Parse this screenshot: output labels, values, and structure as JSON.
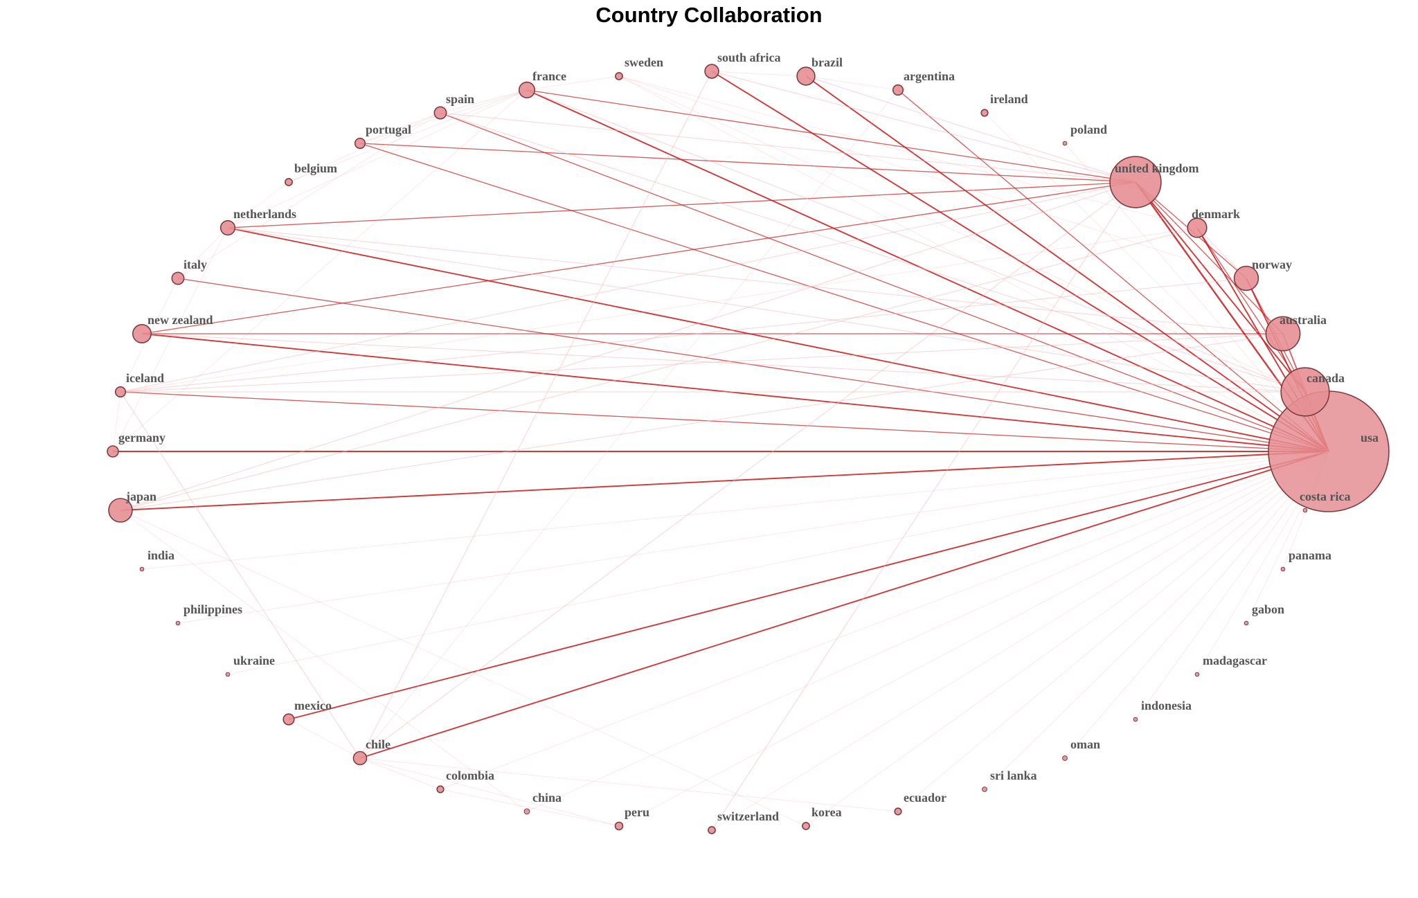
{
  "title": "Country Collaboration",
  "colors": {
    "node_fill": "#e58f94",
    "node_stroke": "#7a3d40",
    "edge_strong": "#cc2222",
    "edge_faint": "#f2b8bb",
    "label": "#555555"
  },
  "nodes": [
    {
      "id": "usa",
      "label": "usa",
      "weight": 100
    },
    {
      "id": "united kingdom",
      "label": "united kingdom",
      "weight": 18
    },
    {
      "id": "canada",
      "label": "canada",
      "weight": 16
    },
    {
      "id": "australia",
      "label": "australia",
      "weight": 8
    },
    {
      "id": "norway",
      "label": "norway",
      "weight": 4
    },
    {
      "id": "denmark",
      "label": "denmark",
      "weight": 2.5
    },
    {
      "id": "japan",
      "label": "japan",
      "weight": 3.8
    },
    {
      "id": "new zealand",
      "label": "new zealand",
      "weight": 2.3
    },
    {
      "id": "brazil",
      "label": "brazil",
      "weight": 2.2
    },
    {
      "id": "france",
      "label": "france",
      "weight": 1.7
    },
    {
      "id": "netherlands",
      "label": "netherlands",
      "weight": 1.4
    },
    {
      "id": "south africa",
      "label": "south africa",
      "weight": 1.3
    },
    {
      "id": "chile",
      "label": "chile",
      "weight": 1.2
    },
    {
      "id": "spain",
      "label": "spain",
      "weight": 1.0
    },
    {
      "id": "italy",
      "label": "italy",
      "weight": 1.0
    },
    {
      "id": "germany",
      "label": "germany",
      "weight": 0.85
    },
    {
      "id": "mexico",
      "label": "mexico",
      "weight": 0.8
    },
    {
      "id": "iceland",
      "label": "iceland",
      "weight": 0.7
    },
    {
      "id": "portugal",
      "label": "portugal",
      "weight": 0.7
    },
    {
      "id": "argentina",
      "label": "argentina",
      "weight": 0.7
    },
    {
      "id": "sweden",
      "label": "sweden",
      "weight": 0.35
    },
    {
      "id": "belgium",
      "label": "belgium",
      "weight": 0.35
    },
    {
      "id": "ireland",
      "label": "ireland",
      "weight": 0.3
    },
    {
      "id": "colombia",
      "label": "colombia",
      "weight": 0.3
    },
    {
      "id": "peru",
      "label": "peru",
      "weight": 0.4
    },
    {
      "id": "switzerland",
      "label": "switzerland",
      "weight": 0.35
    },
    {
      "id": "korea",
      "label": "korea",
      "weight": 0.35
    },
    {
      "id": "ecuador",
      "label": "ecuador",
      "weight": 0.3
    },
    {
      "id": "china",
      "label": "china",
      "weight": 0.2
    },
    {
      "id": "sri lanka",
      "label": "sri lanka",
      "weight": 0.15
    },
    {
      "id": "oman",
      "label": "oman",
      "weight": 0.15
    },
    {
      "id": "indonesia",
      "label": "indonesia",
      "weight": 0.1
    },
    {
      "id": "madagascar",
      "label": "madagascar",
      "weight": 0.1
    },
    {
      "id": "gabon",
      "label": "gabon",
      "weight": 0.1
    },
    {
      "id": "panama",
      "label": "panama",
      "weight": 0.1
    },
    {
      "id": "costa rica",
      "label": "costa rica",
      "weight": 0.1
    },
    {
      "id": "india",
      "label": "india",
      "weight": 0.1
    },
    {
      "id": "philippines",
      "label": "philippines",
      "weight": 0.1
    },
    {
      "id": "ukraine",
      "label": "ukraine",
      "weight": 0.1
    },
    {
      "id": "poland",
      "label": "poland",
      "weight": 0.1
    }
  ],
  "edges": [
    [
      "usa",
      "united kingdom",
      5
    ],
    [
      "usa",
      "canada",
      5
    ],
    [
      "usa",
      "australia",
      4
    ],
    [
      "usa",
      "norway",
      4
    ],
    [
      "usa",
      "denmark",
      4
    ],
    [
      "usa",
      "japan",
      4
    ],
    [
      "usa",
      "new zealand",
      4
    ],
    [
      "usa",
      "germany",
      4
    ],
    [
      "usa",
      "netherlands",
      4
    ],
    [
      "usa",
      "france",
      4
    ],
    [
      "usa",
      "brazil",
      4
    ],
    [
      "usa",
      "south africa",
      4
    ],
    [
      "usa",
      "chile",
      4
    ],
    [
      "usa",
      "mexico",
      4
    ],
    [
      "usa",
      "argentina",
      3
    ],
    [
      "usa",
      "italy",
      3
    ],
    [
      "usa",
      "iceland",
      3
    ],
    [
      "usa",
      "portugal",
      3
    ],
    [
      "usa",
      "spain",
      3
    ],
    [
      "united kingdom",
      "canada",
      4
    ],
    [
      "united kingdom",
      "australia",
      3
    ],
    [
      "united kingdom",
      "norway",
      3
    ],
    [
      "united kingdom",
      "france",
      3
    ],
    [
      "united kingdom",
      "netherlands",
      3
    ],
    [
      "united kingdom",
      "portugal",
      3
    ],
    [
      "united kingdom",
      "new zealand",
      3
    ],
    [
      "united kingdom",
      "iceland",
      2
    ],
    [
      "united kingdom",
      "spain",
      2
    ],
    [
      "united kingdom",
      "brazil",
      2
    ],
    [
      "united kingdom",
      "south africa",
      2
    ],
    [
      "united kingdom",
      "japan",
      2
    ],
    [
      "united kingdom",
      "chile",
      2
    ],
    [
      "canada",
      "denmark",
      3
    ],
    [
      "canada",
      "norway",
      3
    ],
    [
      "canada",
      "australia",
      2
    ],
    [
      "canada",
      "new zealand",
      2
    ],
    [
      "canada",
      "netherlands",
      2
    ],
    [
      "canada",
      "iceland",
      2
    ],
    [
      "canada",
      "france",
      2
    ],
    [
      "canada",
      "spain",
      2
    ],
    [
      "australia",
      "new zealand",
      3
    ],
    [
      "australia",
      "netherlands",
      2
    ],
    [
      "australia",
      "japan",
      2
    ],
    [
      "australia",
      "iceland",
      2
    ],
    [
      "norway",
      "iceland",
      2
    ],
    [
      "norway",
      "denmark",
      2
    ],
    [
      "denmark",
      "japan",
      2
    ],
    [
      "denmark",
      "iceland",
      1
    ],
    [
      "south africa",
      "chile",
      2
    ],
    [
      "iceland",
      "chile",
      2
    ],
    [
      "brazil",
      "south africa",
      1
    ],
    [
      "switzerland",
      "united kingdom",
      2
    ],
    [
      "france",
      "spain",
      1
    ],
    [
      "france",
      "portugal",
      1
    ],
    [
      "france",
      "netherlands",
      1
    ],
    [
      "spain",
      "portugal",
      1
    ],
    [
      "netherlands",
      "belgium",
      1
    ],
    [
      "netherlands",
      "italy",
      1
    ],
    [
      "germany",
      "netherlands",
      1
    ],
    [
      "italy",
      "iceland",
      1
    ],
    [
      "chile",
      "colombia",
      1
    ],
    [
      "chile",
      "peru",
      1
    ],
    [
      "mexico",
      "chile",
      1
    ],
    [
      "sweden",
      "usa",
      1
    ],
    [
      "ireland",
      "usa",
      1
    ],
    [
      "korea",
      "usa",
      1
    ],
    [
      "ecuador",
      "usa",
      1
    ],
    [
      "oman",
      "usa",
      1
    ],
    [
      "sri lanka",
      "usa",
      1
    ],
    [
      "indonesia",
      "usa",
      1
    ],
    [
      "china",
      "usa",
      1
    ],
    [
      "colombia",
      "usa",
      1
    ],
    [
      "peru",
      "usa",
      1
    ],
    [
      "switzerland",
      "usa",
      1
    ],
    [
      "madagascar",
      "usa",
      1
    ],
    [
      "gabon",
      "usa",
      1
    ],
    [
      "panama",
      "usa",
      1
    ],
    [
      "india",
      "usa",
      1
    ],
    [
      "philippines",
      "usa",
      1
    ],
    [
      "ukraine",
      "usa",
      1
    ],
    [
      "poland",
      "usa",
      1
    ],
    [
      "costa rica",
      "usa",
      1
    ],
    [
      "sweden",
      "canada",
      1
    ],
    [
      "sweden",
      "norway",
      1
    ],
    [
      "sweden",
      "france",
      1
    ],
    [
      "belgium",
      "france",
      1
    ],
    [
      "korea",
      "japan",
      1
    ],
    [
      "china",
      "japan",
      1
    ],
    [
      "germany",
      "france",
      1
    ],
    [
      "germany",
      "iceland",
      1
    ],
    [
      "argentina",
      "chile",
      1
    ],
    [
      "brazil",
      "argentina",
      1
    ],
    [
      "ecuador",
      "chile",
      1
    ],
    [
      "peru",
      "colombia",
      1
    ],
    [
      "italy",
      "spain",
      1
    ],
    [
      "belgium",
      "spain",
      1
    ],
    [
      "sweden",
      "denmark",
      1
    ]
  ]
}
